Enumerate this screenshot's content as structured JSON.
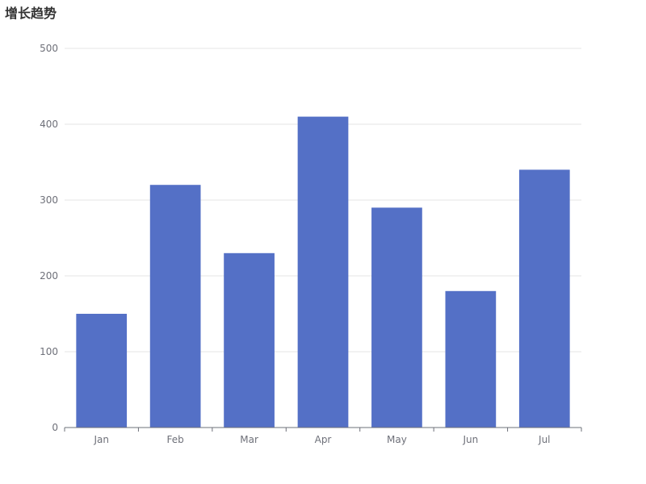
{
  "chart_data": {
    "type": "bar",
    "title": "增长趋势",
    "categories": [
      "Jan",
      "Feb",
      "Mar",
      "Apr",
      "May",
      "Jun",
      "Jul"
    ],
    "values": [
      150,
      320,
      230,
      410,
      290,
      180,
      340
    ],
    "ylim": [
      0,
      500
    ],
    "yticks": [
      "0",
      "100",
      "200",
      "300",
      "400",
      "500"
    ],
    "xlabel": "",
    "ylabel": "",
    "grid": true,
    "legend": "none",
    "colors": {
      "bar": "#5470c6",
      "grid": "#e6e6e6",
      "axis": "#6e7079",
      "title": "#333333"
    }
  }
}
